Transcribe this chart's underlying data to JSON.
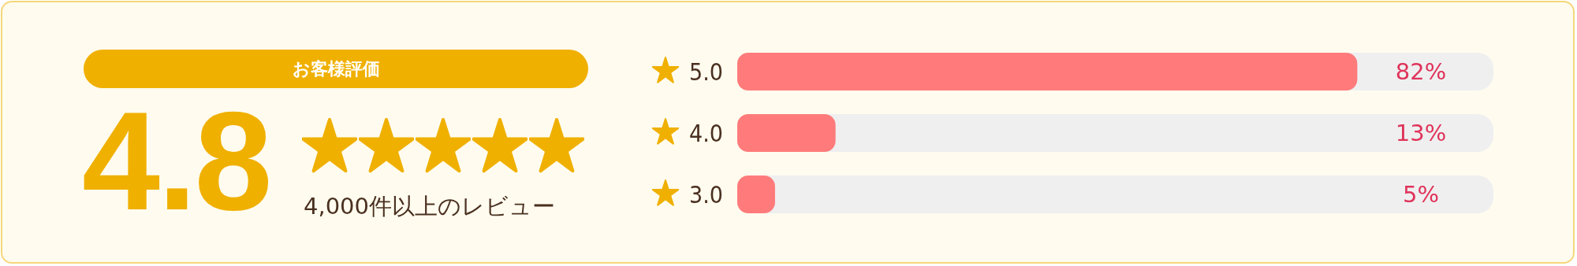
{
  "chart_data": [
    {
      "type": "other",
      "title": "お客様評価",
      "annotations": [
        "4.8",
        "4,000件以上のレビュー"
      ],
      "color": "#f0b000"
    },
    {
      "type": "bar",
      "orientation": "horizontal",
      "categories": [
        "5.0",
        "4.0",
        "3.0"
      ],
      "values": [
        82,
        13,
        5
      ],
      "value_labels": [
        "82%",
        "13%",
        "5%"
      ],
      "color": "#ff7b7b",
      "xlim": [
        0,
        100
      ],
      "tick_labels": "y"
    }
  ]
}
